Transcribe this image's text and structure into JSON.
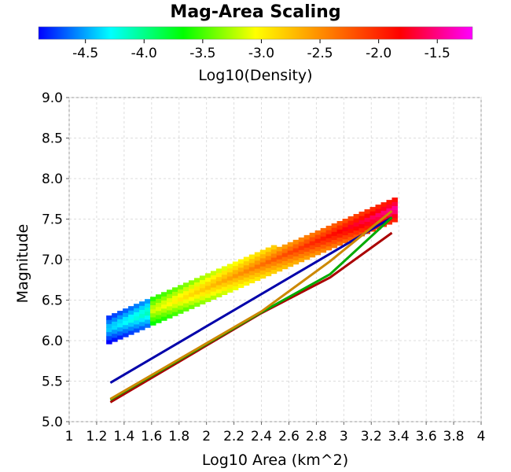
{
  "chart_data": {
    "type": "heatmap",
    "title": "Mag-Area Scaling",
    "xlabel": "Log10 Area (km^2)",
    "ylabel": "Magnitude",
    "xlim": [
      1.0,
      4.0
    ],
    "ylim": [
      5.0,
      9.0
    ],
    "x_ticks": [
      "1",
      "1.2",
      "1.4",
      "1.6",
      "1.8",
      "2",
      "2.2",
      "2.4",
      "2.6",
      "2.8",
      "3",
      "3.2",
      "3.4",
      "3.6",
      "3.8",
      "4"
    ],
    "y_ticks": [
      "5.0",
      "5.5",
      "6.0",
      "6.5",
      "7.0",
      "7.5",
      "8.0",
      "8.5",
      "9.0"
    ],
    "grid": true,
    "colorbar": {
      "label": "Log10(Density)",
      "range": [
        -4.9,
        -1.2
      ],
      "ticks": [
        "-4.5",
        "-4.0",
        "-3.5",
        "-3.0",
        "-2.5",
        "-2.0",
        "-1.5"
      ],
      "colors": [
        "#0000ff",
        "#00ffff",
        "#00ff00",
        "#ffff00",
        "#ff8000",
        "#ff0000",
        "#ff00ff"
      ]
    },
    "series": [
      {
        "type": "line",
        "color": "#0000aa",
        "x": [
          1.3,
          3.35
        ],
        "y": [
          5.48,
          7.52
        ]
      },
      {
        "type": "line",
        "color": "#aa0000",
        "x": [
          1.3,
          2.4,
          2.9,
          3.35
        ],
        "y": [
          5.24,
          6.34,
          6.78,
          7.33
        ]
      },
      {
        "type": "line",
        "color": "#00aa00",
        "x": [
          1.3,
          2.4,
          2.9,
          3.35
        ],
        "y": [
          5.27,
          6.35,
          6.82,
          7.52
        ]
      },
      {
        "type": "line",
        "color": "#cc8800",
        "x": [
          1.3,
          2.4,
          2.9,
          3.35
        ],
        "y": [
          5.28,
          6.36,
          6.98,
          7.6
        ]
      }
    ],
    "density_bands": [
      {
        "x0": 1.27,
        "x1": 3.37,
        "y_low0": 5.98,
        "y_low1": 7.5,
        "y_high0": 6.02,
        "y_high1": 7.75
      }
    ]
  }
}
